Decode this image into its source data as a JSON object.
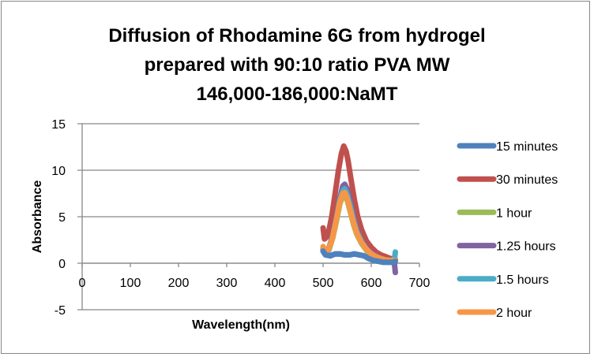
{
  "chart_data": {
    "type": "line",
    "title": "Diffusion of Rhodamine 6G from hydrogel prepared with 90:10 ratio PVA MW 146,000-186,000:NaMT",
    "title_lines": [
      "Diffusion of Rhodamine 6G from hydrogel",
      "prepared with 90:10 ratio PVA MW",
      "146,000-186,000:NaMT"
    ],
    "xlabel": "Wavelength(nm)",
    "ylabel": "Absorbance",
    "xlim": [
      0,
      700
    ],
    "ylim": [
      -5,
      15
    ],
    "xticks": [
      0,
      100,
      200,
      300,
      400,
      500,
      600,
      700
    ],
    "xtick_labels": [
      "0",
      "100",
      "200",
      "300",
      "400",
      "500",
      "600",
      "700"
    ],
    "yticks": [
      15,
      10,
      5,
      0,
      -5
    ],
    "ytick_labels": [
      "15",
      "10",
      "5",
      "0",
      "-5"
    ],
    "grid": "horizontal",
    "legend_position": "right",
    "series": [
      {
        "name": "15 minutes",
        "color": "#4F81BD",
        "x": [
          500,
          505,
          515,
          525,
          535,
          545,
          555,
          565,
          575,
          585,
          595,
          605,
          615,
          625,
          635,
          645,
          650
        ],
        "y": [
          1.3,
          0.9,
          0.8,
          1.0,
          1.0,
          0.9,
          0.9,
          1.0,
          0.9,
          0.8,
          0.5,
          0.3,
          0.2,
          0.1,
          0.1,
          0.1,
          0.2
        ]
      },
      {
        "name": "30 minutes",
        "color": "#C0504D",
        "x": [
          500,
          503,
          507,
          512,
          518,
          525,
          532,
          538,
          543,
          548,
          552,
          558,
          565,
          572,
          580,
          590,
          600,
          610,
          620,
          630,
          640,
          650
        ],
        "y": [
          3.8,
          2.6,
          2.8,
          3.5,
          5.0,
          7.5,
          10.0,
          11.8,
          12.6,
          12.0,
          11.0,
          9.0,
          6.8,
          5.0,
          3.6,
          2.4,
          1.7,
          1.2,
          0.9,
          0.7,
          0.5,
          0.4
        ]
      },
      {
        "name": "1 hour",
        "color": "#9BBB59",
        "x": [
          500,
          505,
          512,
          520,
          528,
          535,
          541,
          545,
          550,
          556,
          563,
          570,
          580,
          590,
          600,
          610,
          620,
          630,
          640,
          650
        ],
        "y": [
          1.6,
          1.1,
          1.4,
          2.7,
          4.6,
          6.4,
          7.2,
          7.3,
          6.8,
          5.6,
          4.2,
          3.1,
          2.1,
          1.4,
          0.9,
          0.6,
          0.4,
          0.3,
          0.2,
          0.2
        ]
      },
      {
        "name": "1.25 hours",
        "color": "#8064A2",
        "x": [
          500,
          505,
          512,
          520,
          528,
          535,
          541,
          545,
          550,
          556,
          563,
          570,
          580,
          590,
          600,
          610,
          620,
          630,
          640,
          648,
          650
        ],
        "y": [
          1.5,
          1.2,
          1.6,
          3.0,
          5.0,
          7.0,
          8.3,
          8.5,
          8.0,
          6.8,
          5.0,
          3.6,
          2.4,
          1.6,
          1.1,
          0.8,
          0.5,
          0.3,
          0.2,
          0.0,
          -1.0
        ]
      },
      {
        "name": "1.5 hours",
        "color": "#4BACC6",
        "x": [
          500,
          505,
          512,
          520,
          528,
          535,
          541,
          545,
          550,
          556,
          563,
          570,
          580,
          590,
          600,
          610,
          620,
          630,
          640,
          648,
          650
        ],
        "y": [
          1.4,
          1.0,
          1.4,
          2.9,
          4.9,
          6.8,
          7.8,
          8.0,
          7.4,
          6.2,
          4.7,
          3.4,
          2.3,
          1.5,
          1.0,
          0.7,
          0.5,
          0.3,
          0.3,
          0.4,
          1.2
        ]
      },
      {
        "name": "2 hour",
        "color": "#F79646",
        "x": [
          500,
          505,
          512,
          520,
          528,
          535,
          541,
          545,
          550,
          556,
          563,
          570,
          580,
          590,
          600,
          610,
          620,
          630,
          640,
          650
        ],
        "y": [
          1.8,
          1.2,
          1.5,
          2.8,
          4.8,
          6.6,
          7.5,
          7.6,
          7.0,
          5.8,
          4.4,
          3.2,
          2.2,
          1.5,
          1.0,
          0.7,
          0.5,
          0.35,
          0.3,
          0.3
        ]
      }
    ]
  }
}
